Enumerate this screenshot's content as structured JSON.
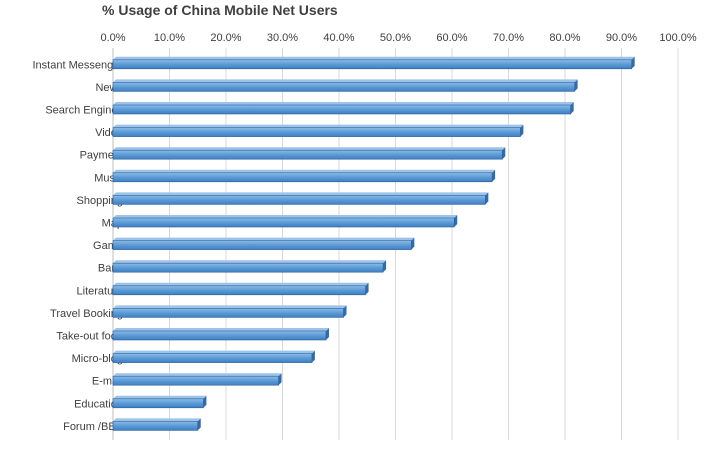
{
  "chart_data": {
    "type": "bar",
    "orientation": "horizontal",
    "title": "% Usage of China Mobile Net Users",
    "xlabel": "",
    "ylabel": "",
    "xlim": [
      0,
      100
    ],
    "x_ticks": [
      "0.0%",
      "10.0%",
      "20.0%",
      "30.0%",
      "40.0%",
      "50.0%",
      "60.0%",
      "70.0%",
      "80.0%",
      "90.0%",
      "100.0%"
    ],
    "x_axis_position": "top",
    "grid": true,
    "legend": "none",
    "categories": [
      "Instant Messenger",
      "News",
      "Search Engines",
      "Video",
      "Payment",
      "Music",
      "Shopping",
      "Map",
      "Game",
      "Bank",
      "Literature",
      "Travel Booking",
      "Take-out food",
      "Micro-blog",
      "E-mail",
      "Education",
      "Forum /BBS"
    ],
    "values": [
      91.8,
      81.7,
      81.0,
      72.1,
      68.9,
      67.1,
      65.9,
      60.4,
      52.8,
      47.8,
      44.7,
      40.8,
      37.7,
      35.2,
      29.3,
      16.0,
      15.0
    ],
    "colors": {
      "bar": "#5b9bd5",
      "bar_dark": "#2e6bb0",
      "grid": "#d9d9d9",
      "text": "#404040"
    }
  }
}
